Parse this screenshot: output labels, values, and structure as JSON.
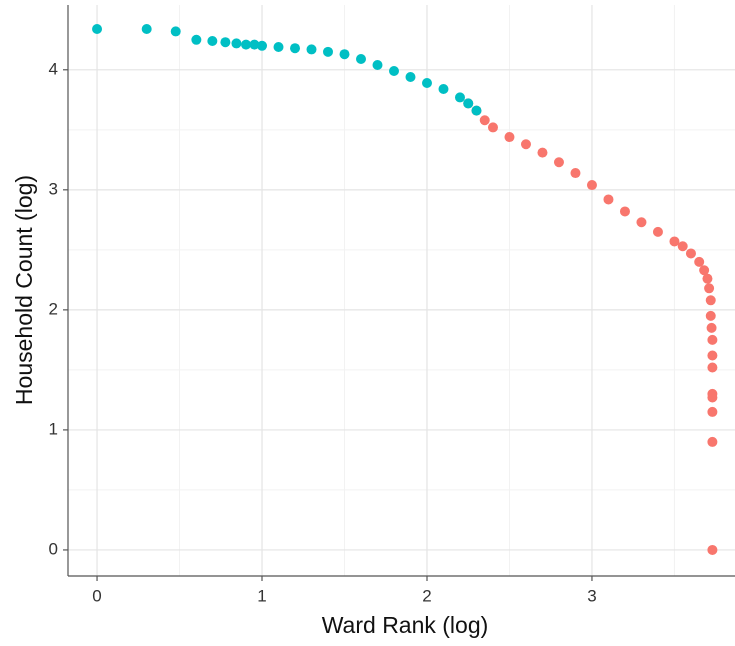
{
  "chart_data": {
    "type": "scatter",
    "x_label": "Ward Rank (log)",
    "y_label": "Household Count (log)",
    "xlim": [
      -0.176,
      3.867
    ],
    "ylim": [
      -0.217,
      4.54
    ],
    "xticks": [
      0,
      1,
      2,
      3
    ],
    "yticks": [
      0,
      1,
      2,
      3,
      4
    ],
    "x_minor_grid": [
      0.5,
      1.5,
      2.5,
      3.5
    ],
    "y_minor_grid": [
      0.5,
      1.5,
      2.5,
      3.5
    ],
    "grid": true,
    "series": [
      {
        "color": "#f8766d",
        "x": [
          2.25,
          2.3,
          2.35,
          2.4,
          2.5,
          2.6,
          2.7,
          2.8,
          2.9,
          3.0,
          3.1,
          3.2,
          3.3,
          3.4,
          3.5,
          3.55,
          3.6,
          3.65,
          3.68,
          3.7,
          3.71,
          3.72,
          3.72,
          3.725,
          3.73,
          3.73,
          3.73,
          3.73,
          3.73,
          3.73,
          3.73,
          3.73
        ],
        "values": [
          3.72,
          3.66,
          3.58,
          3.52,
          3.44,
          3.38,
          3.31,
          3.23,
          3.14,
          3.04,
          2.92,
          2.82,
          2.73,
          2.65,
          2.57,
          2.53,
          2.47,
          2.4,
          2.33,
          2.26,
          2.18,
          2.08,
          1.95,
          1.85,
          1.75,
          1.62,
          1.52,
          1.3,
          1.27,
          1.15,
          0.9,
          0.0
        ]
      },
      {
        "color": "#00bfc4",
        "x": [
          0,
          0.301,
          0.477,
          0.602,
          0.699,
          0.778,
          0.845,
          0.903,
          0.954,
          1,
          1.1,
          1.2,
          1.3,
          1.4,
          1.5,
          1.6,
          1.7,
          1.8,
          1.9,
          2,
          2.1,
          2.2,
          2.25,
          2.3
        ],
        "values": [
          4.34,
          4.34,
          4.32,
          4.25,
          4.24,
          4.23,
          4.22,
          4.21,
          4.21,
          4.2,
          4.19,
          4.18,
          4.17,
          4.15,
          4.13,
          4.09,
          4.04,
          3.99,
          3.94,
          3.89,
          3.84,
          3.77,
          3.72,
          3.66
        ]
      }
    ]
  }
}
